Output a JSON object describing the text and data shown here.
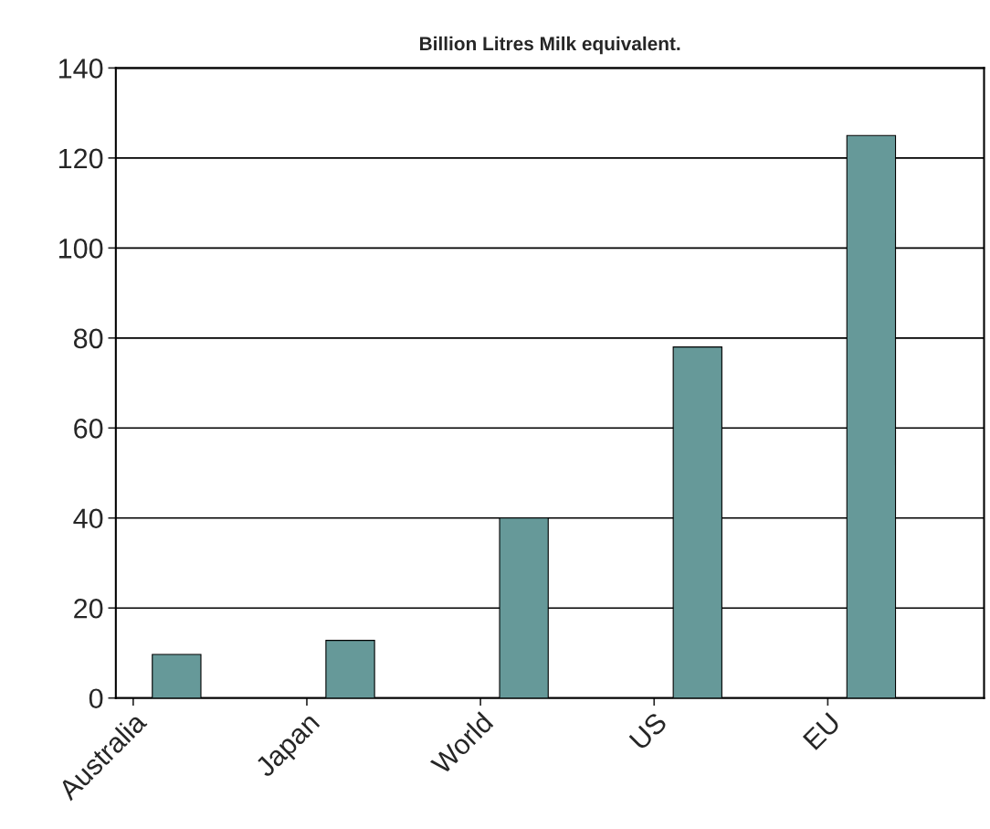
{
  "chart_data": {
    "type": "bar",
    "title": "Billion Litres Milk equivalent.",
    "categories": [
      "Australia",
      "Japan",
      "World",
      "US",
      "EU"
    ],
    "values": [
      9.7,
      12.8,
      40,
      78,
      125
    ],
    "color": "#669999",
    "ylim": [
      0,
      140
    ],
    "yticks": [
      0,
      20,
      40,
      60,
      80,
      100,
      120,
      140
    ],
    "grid": "y"
  }
}
